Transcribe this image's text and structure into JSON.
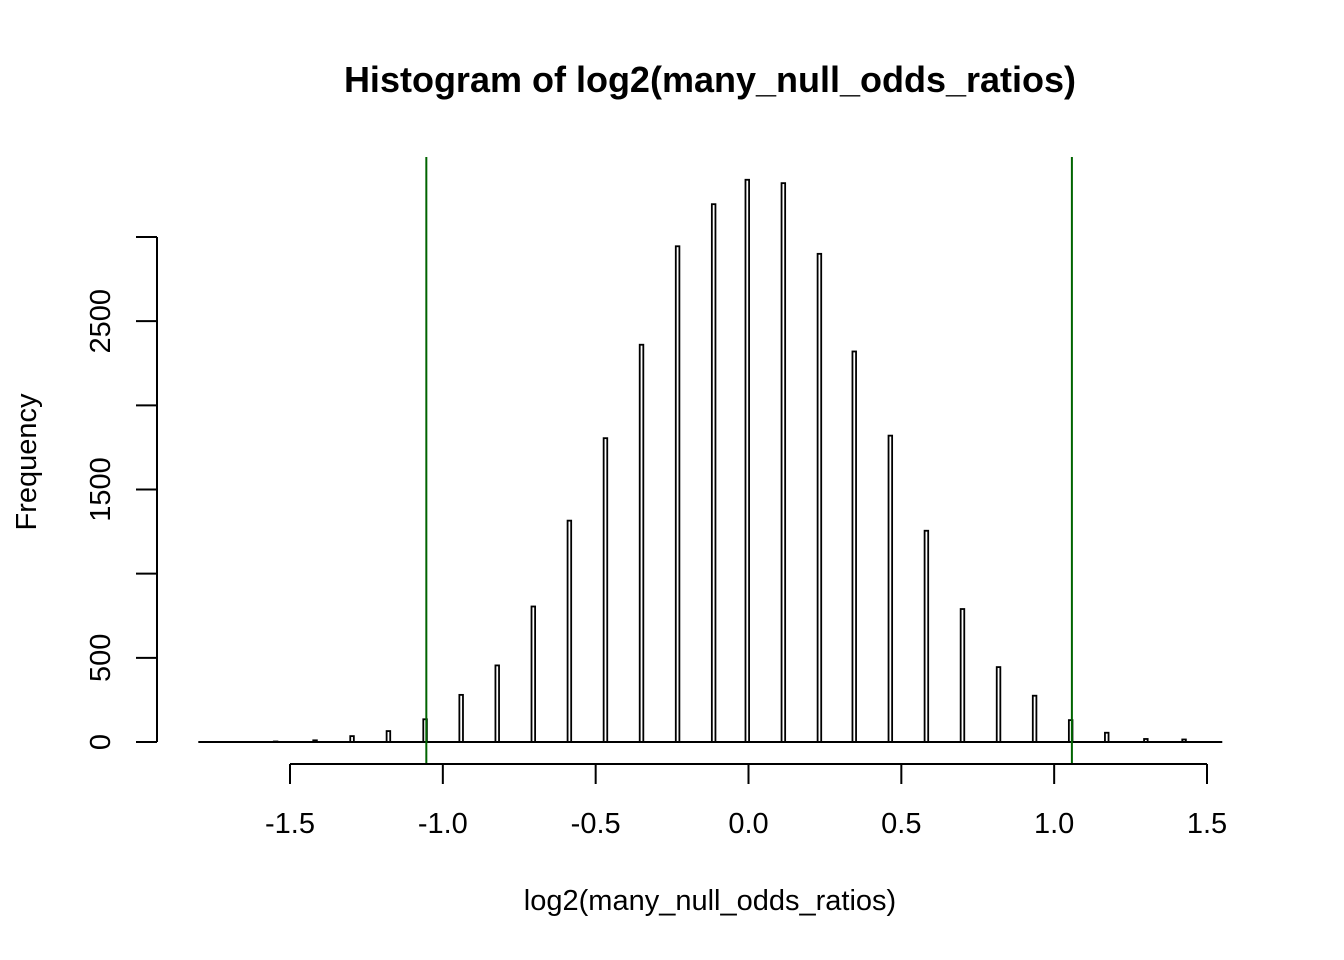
{
  "chart_data": {
    "type": "bar",
    "title": "Histogram of log2(many_null_odds_ratios)",
    "xlabel": "log2(many_null_odds_ratios)",
    "ylabel": "Frequency",
    "xlim": [
      -1.8,
      1.55
    ],
    "ylim": [
      0,
      3350
    ],
    "x_axis_range": [
      -1.5,
      1.5
    ],
    "y_axis_range": [
      0,
      3000
    ],
    "x_ticks": [
      -1.5,
      -1.0,
      -0.5,
      0.0,
      0.5,
      1.0,
      1.5
    ],
    "x_tick_labels": [
      "-1.5",
      "-1.0",
      "-0.5",
      "0.0",
      "0.5",
      "1.0",
      "1.5"
    ],
    "y_ticks": [
      0,
      500,
      1000,
      1500,
      2000,
      2500,
      3000
    ],
    "y_tick_labels": [
      "0",
      "500",
      "",
      "1500",
      "",
      "2500",
      ""
    ],
    "baseline_range": [
      -1.8,
      1.55
    ],
    "bars": [
      {
        "x": -1.547,
        "y": 3
      },
      {
        "x": -1.418,
        "y": 10
      },
      {
        "x": -1.297,
        "y": 35
      },
      {
        "x": -1.178,
        "y": 65
      },
      {
        "x": -1.058,
        "y": 135
      },
      {
        "x": -0.94,
        "y": 280
      },
      {
        "x": -0.822,
        "y": 455
      },
      {
        "x": -0.704,
        "y": 805
      },
      {
        "x": -0.586,
        "y": 1315
      },
      {
        "x": -0.468,
        "y": 1805
      },
      {
        "x": -0.35,
        "y": 2360
      },
      {
        "x": -0.232,
        "y": 2945
      },
      {
        "x": -0.114,
        "y": 3195
      },
      {
        "x": -0.004,
        "y": 3340
      },
      {
        "x": 0.114,
        "y": 3320
      },
      {
        "x": 0.232,
        "y": 2900
      },
      {
        "x": 0.346,
        "y": 2320
      },
      {
        "x": 0.464,
        "y": 1820
      },
      {
        "x": 0.582,
        "y": 1255
      },
      {
        "x": 0.7,
        "y": 790
      },
      {
        "x": 0.818,
        "y": 445
      },
      {
        "x": 0.936,
        "y": 275
      },
      {
        "x": 1.054,
        "y": 130
      },
      {
        "x": 1.172,
        "y": 55
      },
      {
        "x": 1.3,
        "y": 18
      },
      {
        "x": 1.425,
        "y": 15
      }
    ],
    "vlines": [
      {
        "x": -1.054,
        "color": "#006400"
      },
      {
        "x": 1.058,
        "color": "#006400"
      }
    ],
    "bar_color": "#ffffff",
    "bar_border": "#000000",
    "grid": false
  }
}
